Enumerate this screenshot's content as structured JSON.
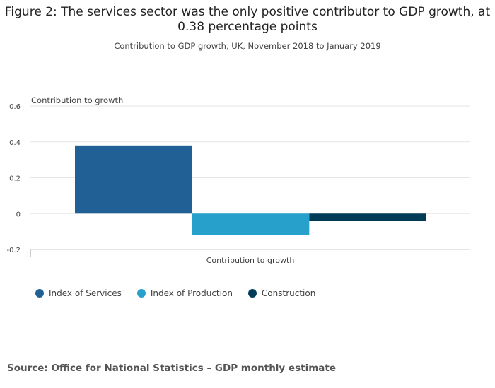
{
  "chart_data": {
    "type": "bar",
    "title": "Figure 2: The services sector was the only positive contributor to GDP growth, at 0.38 percentage points",
    "subtitle": "Contribution to GDP growth, UK, November 2018 to January 2019",
    "ylabel": "Contribution to growth",
    "xlabel": "",
    "categories": [
      "Contribution to growth"
    ],
    "series": [
      {
        "name": "Index of Services",
        "values": [
          0.38
        ],
        "color": "#206095"
      },
      {
        "name": "Index of Production",
        "values": [
          -0.12
        ],
        "color": "#27a0cc"
      },
      {
        "name": "Construction",
        "values": [
          -0.04
        ],
        "color": "#003c57"
      }
    ],
    "ylim": [
      -0.2,
      0.6
    ],
    "yticks": [
      "0.6",
      "0.4",
      "0.2",
      "0",
      "-0.2"
    ],
    "grid": true,
    "legend": "bottom-left"
  },
  "source": "Source: Office for National Statistics – GDP monthly estimate"
}
